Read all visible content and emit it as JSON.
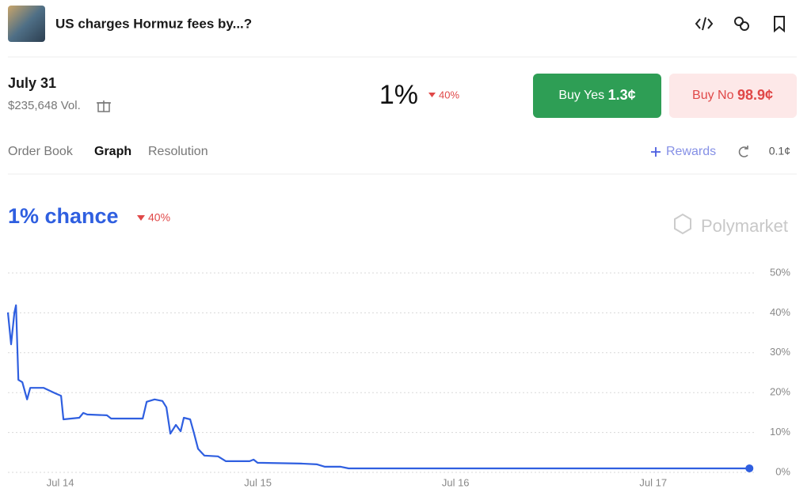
{
  "header": {
    "title": "US charges Hormuz fees by...?"
  },
  "market": {
    "date": "July 31",
    "volume": "$235,648 Vol.",
    "probability": "1%",
    "change": "40%",
    "buy_yes": {
      "label": "Buy Yes",
      "price": "1.3¢"
    },
    "buy_no": {
      "label": "Buy No",
      "price": "98.9¢"
    }
  },
  "tabs": [
    "Order Book",
    "Graph",
    "Resolution"
  ],
  "rewards": "Rewards",
  "tick_size": "0.1¢",
  "chart_data": {
    "type": "line",
    "title": "1% chance",
    "change": "40%",
    "watermark": "Polymarket",
    "color": "#2f5fe0",
    "grid": true,
    "x": [
      13.735,
      13.751,
      13.768,
      13.776,
      13.788,
      13.808,
      13.832,
      13.848,
      13.916,
      13.976,
      14.004,
      14.016,
      14.096,
      14.116,
      14.136,
      14.236,
      14.257,
      14.417,
      14.437,
      14.477,
      14.517,
      14.537,
      14.557,
      14.585,
      14.609,
      14.625,
      14.657,
      14.677,
      14.697,
      14.729,
      14.798,
      14.838,
      14.958,
      14.978,
      14.998,
      15.218,
      15.299,
      15.339,
      15.419,
      15.459,
      16.1,
      17.487
    ],
    "values": [
      40.1,
      32.1,
      40.1,
      41.9,
      23.2,
      22.6,
      18.3,
      21.2,
      21.2,
      19.8,
      19.2,
      13.3,
      13.7,
      14.9,
      14.5,
      14.3,
      13.5,
      13.5,
      17.7,
      18.3,
      17.9,
      16.3,
      9.7,
      11.9,
      10.3,
      13.7,
      13.3,
      9.7,
      5.9,
      4.2,
      4.0,
      2.8,
      2.8,
      3.2,
      2.4,
      2.2,
      2.0,
      1.4,
      1.4,
      1.0,
      1.0,
      1.0
    ],
    "xlim": [
      13.735,
      17.5
    ],
    "xticks": [
      {
        "value": 14,
        "label": "Jul 14"
      },
      {
        "value": 15,
        "label": "Jul 15"
      },
      {
        "value": 16,
        "label": "Jul 16"
      },
      {
        "value": 17,
        "label": "Jul 17"
      }
    ],
    "ylim": [
      0,
      50
    ],
    "yticks": [
      {
        "value": 0,
        "label": "0%"
      },
      {
        "value": 10,
        "label": "10%"
      },
      {
        "value": 20,
        "label": "20%"
      },
      {
        "value": 30,
        "label": "30%"
      },
      {
        "value": 40,
        "label": "40%"
      },
      {
        "value": 50,
        "label": "50%"
      }
    ]
  }
}
